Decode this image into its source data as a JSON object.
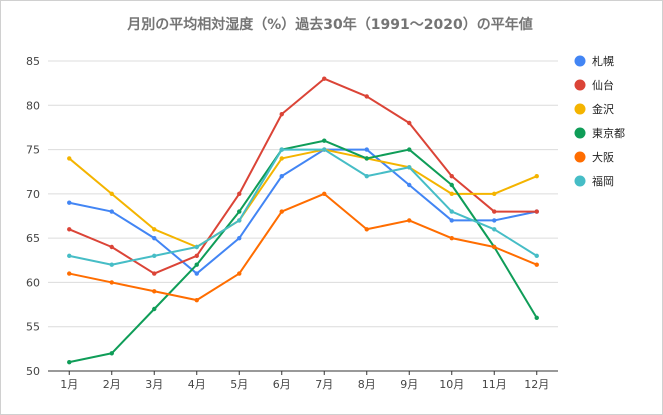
{
  "chart_data": {
    "type": "line",
    "title": "月別の平均相対湿度（%）過去30年（1991～2020）の平年値",
    "xlabel": "",
    "ylabel": "",
    "categories": [
      "1月",
      "2月",
      "3月",
      "4月",
      "5月",
      "6月",
      "7月",
      "8月",
      "9月",
      "10月",
      "11月",
      "12月"
    ],
    "ylim": [
      50,
      85
    ],
    "yticks": [
      50,
      55,
      60,
      65,
      70,
      75,
      80,
      85
    ],
    "grid": true,
    "legend_position": "right",
    "series": [
      {
        "name": "札幌",
        "color": "#4285F4",
        "values": [
          69,
          68,
          65,
          61,
          65,
          72,
          75,
          75,
          71,
          67,
          67,
          68
        ]
      },
      {
        "name": "仙台",
        "color": "#DB4437",
        "values": [
          66,
          64,
          61,
          63,
          70,
          79,
          83,
          81,
          78,
          72,
          68,
          68
        ]
      },
      {
        "name": "金沢",
        "color": "#F4B400",
        "values": [
          74,
          70,
          66,
          64,
          67,
          74,
          75,
          74,
          73,
          70,
          70,
          72
        ]
      },
      {
        "name": "東京都",
        "color": "#0F9D58",
        "values": [
          51,
          52,
          57,
          62,
          68,
          75,
          76,
          74,
          75,
          71,
          64,
          56
        ]
      },
      {
        "name": "大阪",
        "color": "#FF6D00",
        "values": [
          61,
          60,
          59,
          58,
          61,
          68,
          70,
          66,
          67,
          65,
          64,
          62
        ]
      },
      {
        "name": "福岡",
        "color": "#46BDC6",
        "values": [
          63,
          62,
          63,
          64,
          67,
          75,
          75,
          72,
          73,
          68,
          66,
          63
        ]
      }
    ]
  }
}
